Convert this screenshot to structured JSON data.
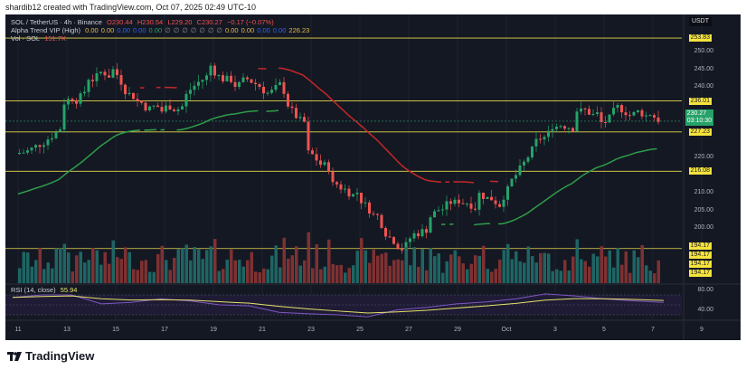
{
  "credit": "shardib12 created with TradingView.com, Oct 07, 2025 02:49 UTC-10",
  "legend": {
    "symbol": "SOL / TetherUS · 4h · Binance",
    "open": "O230.44",
    "high": "H230.54",
    "low": "L229.20",
    "close": "C230.27",
    "change": "−0.17 (−0.07%)",
    "indicator": "Alpha Trend VIP (High)",
    "indicator_values": [
      "0.00",
      "0.00",
      "0.00",
      "0.00",
      "0.00",
      "∅",
      "∅",
      "∅",
      "∅",
      "∅",
      "∅",
      "∅",
      "0.00",
      "0.00",
      "0.00",
      "0.00",
      "226.23"
    ],
    "volume": "Vol · SOL",
    "volume_value": "151.7K",
    "rsi": "RSI (14, close)",
    "rsi_value": "55.94"
  },
  "currency": "USDT",
  "current_price": "230.27",
  "countdown": "03:10:30",
  "brand": "TradingView",
  "colors": {
    "up": "#26a269",
    "down": "#ef5350",
    "level": "#f5e33d",
    "trend_up": "#2e9e4a",
    "trend_down": "#c62828",
    "rsi": "#7e57c2",
    "rsi_ma": "#e6e36a",
    "background": "#141823"
  },
  "chart_data": {
    "type": "candlestick",
    "x_ticks": [
      "11",
      "13",
      "15",
      "17",
      "19",
      "21",
      "23",
      "25",
      "27",
      "29",
      "Oct",
      "3",
      "5",
      "7",
      "9"
    ],
    "y_ticks": [
      "250.00",
      "245.00",
      "240.00",
      "220.00",
      "210.00",
      "205.00",
      "200.00"
    ],
    "ylim": [
      190,
      256
    ],
    "dates": [
      "Sep 11",
      "Sep 12",
      "Sep 13",
      "Sep 14",
      "Sep 15",
      "Sep 16",
      "Sep 17",
      "Sep 18",
      "Sep 19",
      "Sep 20",
      "Sep 21",
      "Sep 22",
      "Sep 23",
      "Sep 24",
      "Sep 25",
      "Sep 26",
      "Sep 27",
      "Sep 28",
      "Sep 29",
      "Sep 30",
      "Oct 1",
      "Oct 2",
      "Oct 3",
      "Oct 4",
      "Oct 5",
      "Oct 6",
      "Oct 7"
    ],
    "close": [
      223,
      235,
      242,
      245,
      236,
      233,
      238,
      246,
      240,
      240,
      238,
      222,
      213,
      210,
      200,
      196,
      203,
      208,
      210,
      208,
      220,
      228,
      233,
      230,
      232,
      232,
      230.27
    ],
    "levels": [
      "253.83",
      "236.01",
      "227.23",
      "216.08",
      "194.17",
      "194.17",
      "194.17",
      "194.17"
    ],
    "rsi": {
      "ylim": [
        20,
        90
      ],
      "ticks": [
        "80.00",
        "40.00"
      ],
      "values": [
        65,
        70,
        70,
        52,
        55,
        62,
        58,
        50,
        48,
        35,
        32,
        30,
        26,
        40,
        45,
        52,
        56,
        62,
        72,
        68,
        62,
        58,
        55
      ]
    }
  }
}
